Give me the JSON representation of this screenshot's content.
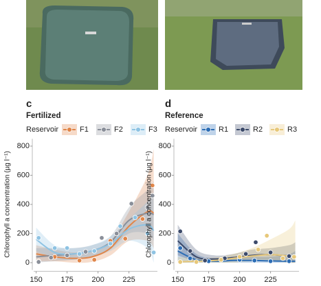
{
  "chart_data": [
    {
      "type": "scatter",
      "panel_label": "c",
      "title": "Fertilized",
      "legend_title": "Reservoir",
      "y_label": "Chlorophyll a concentration (µg l⁻¹)",
      "xlim": [
        148,
        248
      ],
      "xticks": [
        150,
        175,
        200,
        225
      ],
      "ylim": [
        -50,
        850
      ],
      "yticks": [
        0,
        200,
        400,
        600,
        800
      ],
      "series": [
        {
          "name": "F1",
          "color": "#e0864a",
          "x": [
            152,
            165,
            185,
            197,
            210,
            222,
            236,
            244
          ],
          "values": [
            10,
            40,
            15,
            20,
            150,
            165,
            300,
            530
          ],
          "trend": {
            "x": [
              150,
              165,
              180,
              195,
              210,
              225,
              240,
              245
            ],
            "values": [
              60,
              40,
              30,
              40,
              100,
              250,
              350,
              340
            ],
            "lower": [
              10,
              10,
              0,
              5,
              50,
              150,
              150,
              100
            ],
            "upper": [
              120,
              90,
              70,
              80,
              150,
              350,
              600,
              780
            ]
          }
        },
        {
          "name": "F2",
          "color": "#8a8f99",
          "x": [
            152,
            162,
            175,
            190,
            203,
            215,
            227,
            240,
            244
          ],
          "values": [
            5,
            35,
            50,
            75,
            170,
            200,
            405,
            380,
            460
          ],
          "trend": {
            "x": [
              150,
              165,
              180,
              195,
              210,
              225,
              240,
              245
            ],
            "values": [
              40,
              50,
              60,
              80,
              140,
              290,
              340,
              330
            ],
            "lower": [
              0,
              10,
              20,
              40,
              90,
              200,
              200,
              150
            ],
            "upper": [
              100,
              100,
              100,
              120,
              180,
              380,
              500,
              560
            ]
          }
        },
        {
          "name": "F3",
          "color": "#8ec3e3",
          "x": [
            152,
            165,
            175,
            185,
            197,
            210,
            218,
            230,
            240,
            245
          ],
          "values": [
            170,
            100,
            100,
            60,
            80,
            130,
            250,
            310,
            200,
            70
          ],
          "trend": {
            "x": [
              150,
              165,
              180,
              195,
              210,
              225,
              240,
              245
            ],
            "values": [
              160,
              70,
              60,
              80,
              130,
              230,
              260,
              220
            ],
            "lower": [
              80,
              30,
              20,
              40,
              80,
              150,
              100,
              0
            ],
            "upper": [
              240,
              120,
              100,
              120,
              180,
              300,
              420,
              480
            ]
          }
        }
      ]
    },
    {
      "type": "scatter",
      "panel_label": "d",
      "title": "Reference",
      "legend_title": "Reservoir",
      "y_label": "Chlorophyll a concentration (µg l⁻¹)",
      "xlim": [
        148,
        248
      ],
      "xticks": [
        150,
        175,
        200,
        225
      ],
      "ylim": [
        -50,
        850
      ],
      "yticks": [
        0,
        200,
        400,
        600,
        800
      ],
      "series": [
        {
          "name": "R1",
          "color": "#2c6db5",
          "x": [
            152,
            160,
            175,
            185,
            200,
            212,
            225,
            240
          ],
          "values": [
            100,
            30,
            10,
            20,
            20,
            15,
            10,
            10
          ],
          "trend": {
            "x": [
              150,
              165,
              180,
              195,
              210,
              225,
              240,
              245
            ],
            "values": [
              80,
              20,
              10,
              15,
              15,
              12,
              10,
              10
            ],
            "lower": [
              0,
              0,
              0,
              0,
              0,
              0,
              0,
              0
            ],
            "upper": [
              200,
              60,
              30,
              35,
              40,
              40,
              60,
              80
            ]
          }
        },
        {
          "name": "R2",
          "color": "#3c4a6a",
          "x": [
            152,
            160,
            172,
            188,
            205,
            213,
            225,
            240
          ],
          "values": [
            215,
            80,
            15,
            30,
            60,
            140,
            70,
            45
          ],
          "trend": {
            "x": [
              150,
              165,
              180,
              195,
              210,
              225,
              240,
              245
            ],
            "values": [
              150,
              40,
              25,
              35,
              50,
              55,
              45,
              40
            ],
            "lower": [
              50,
              10,
              5,
              10,
              20,
              20,
              0,
              0
            ],
            "upper": [
              260,
              90,
              50,
              60,
              90,
              100,
              120,
              140
            ]
          }
        },
        {
          "name": "R3",
          "color": "#e7c87a",
          "x": [
            152,
            165,
            185,
            200,
            215,
            222,
            235,
            244
          ],
          "values": [
            5,
            5,
            20,
            40,
            90,
            185,
            30,
            40
          ],
          "trend": {
            "x": [
              150,
              165,
              180,
              195,
              210,
              225,
              240,
              245
            ],
            "values": [
              5,
              10,
              15,
              30,
              45,
              55,
              45,
              40
            ],
            "lower": [
              0,
              0,
              0,
              0,
              10,
              10,
              0,
              0
            ],
            "upper": [
              40,
              30,
              35,
              60,
              100,
              160,
              230,
              290
            ]
          }
        }
      ]
    }
  ]
}
